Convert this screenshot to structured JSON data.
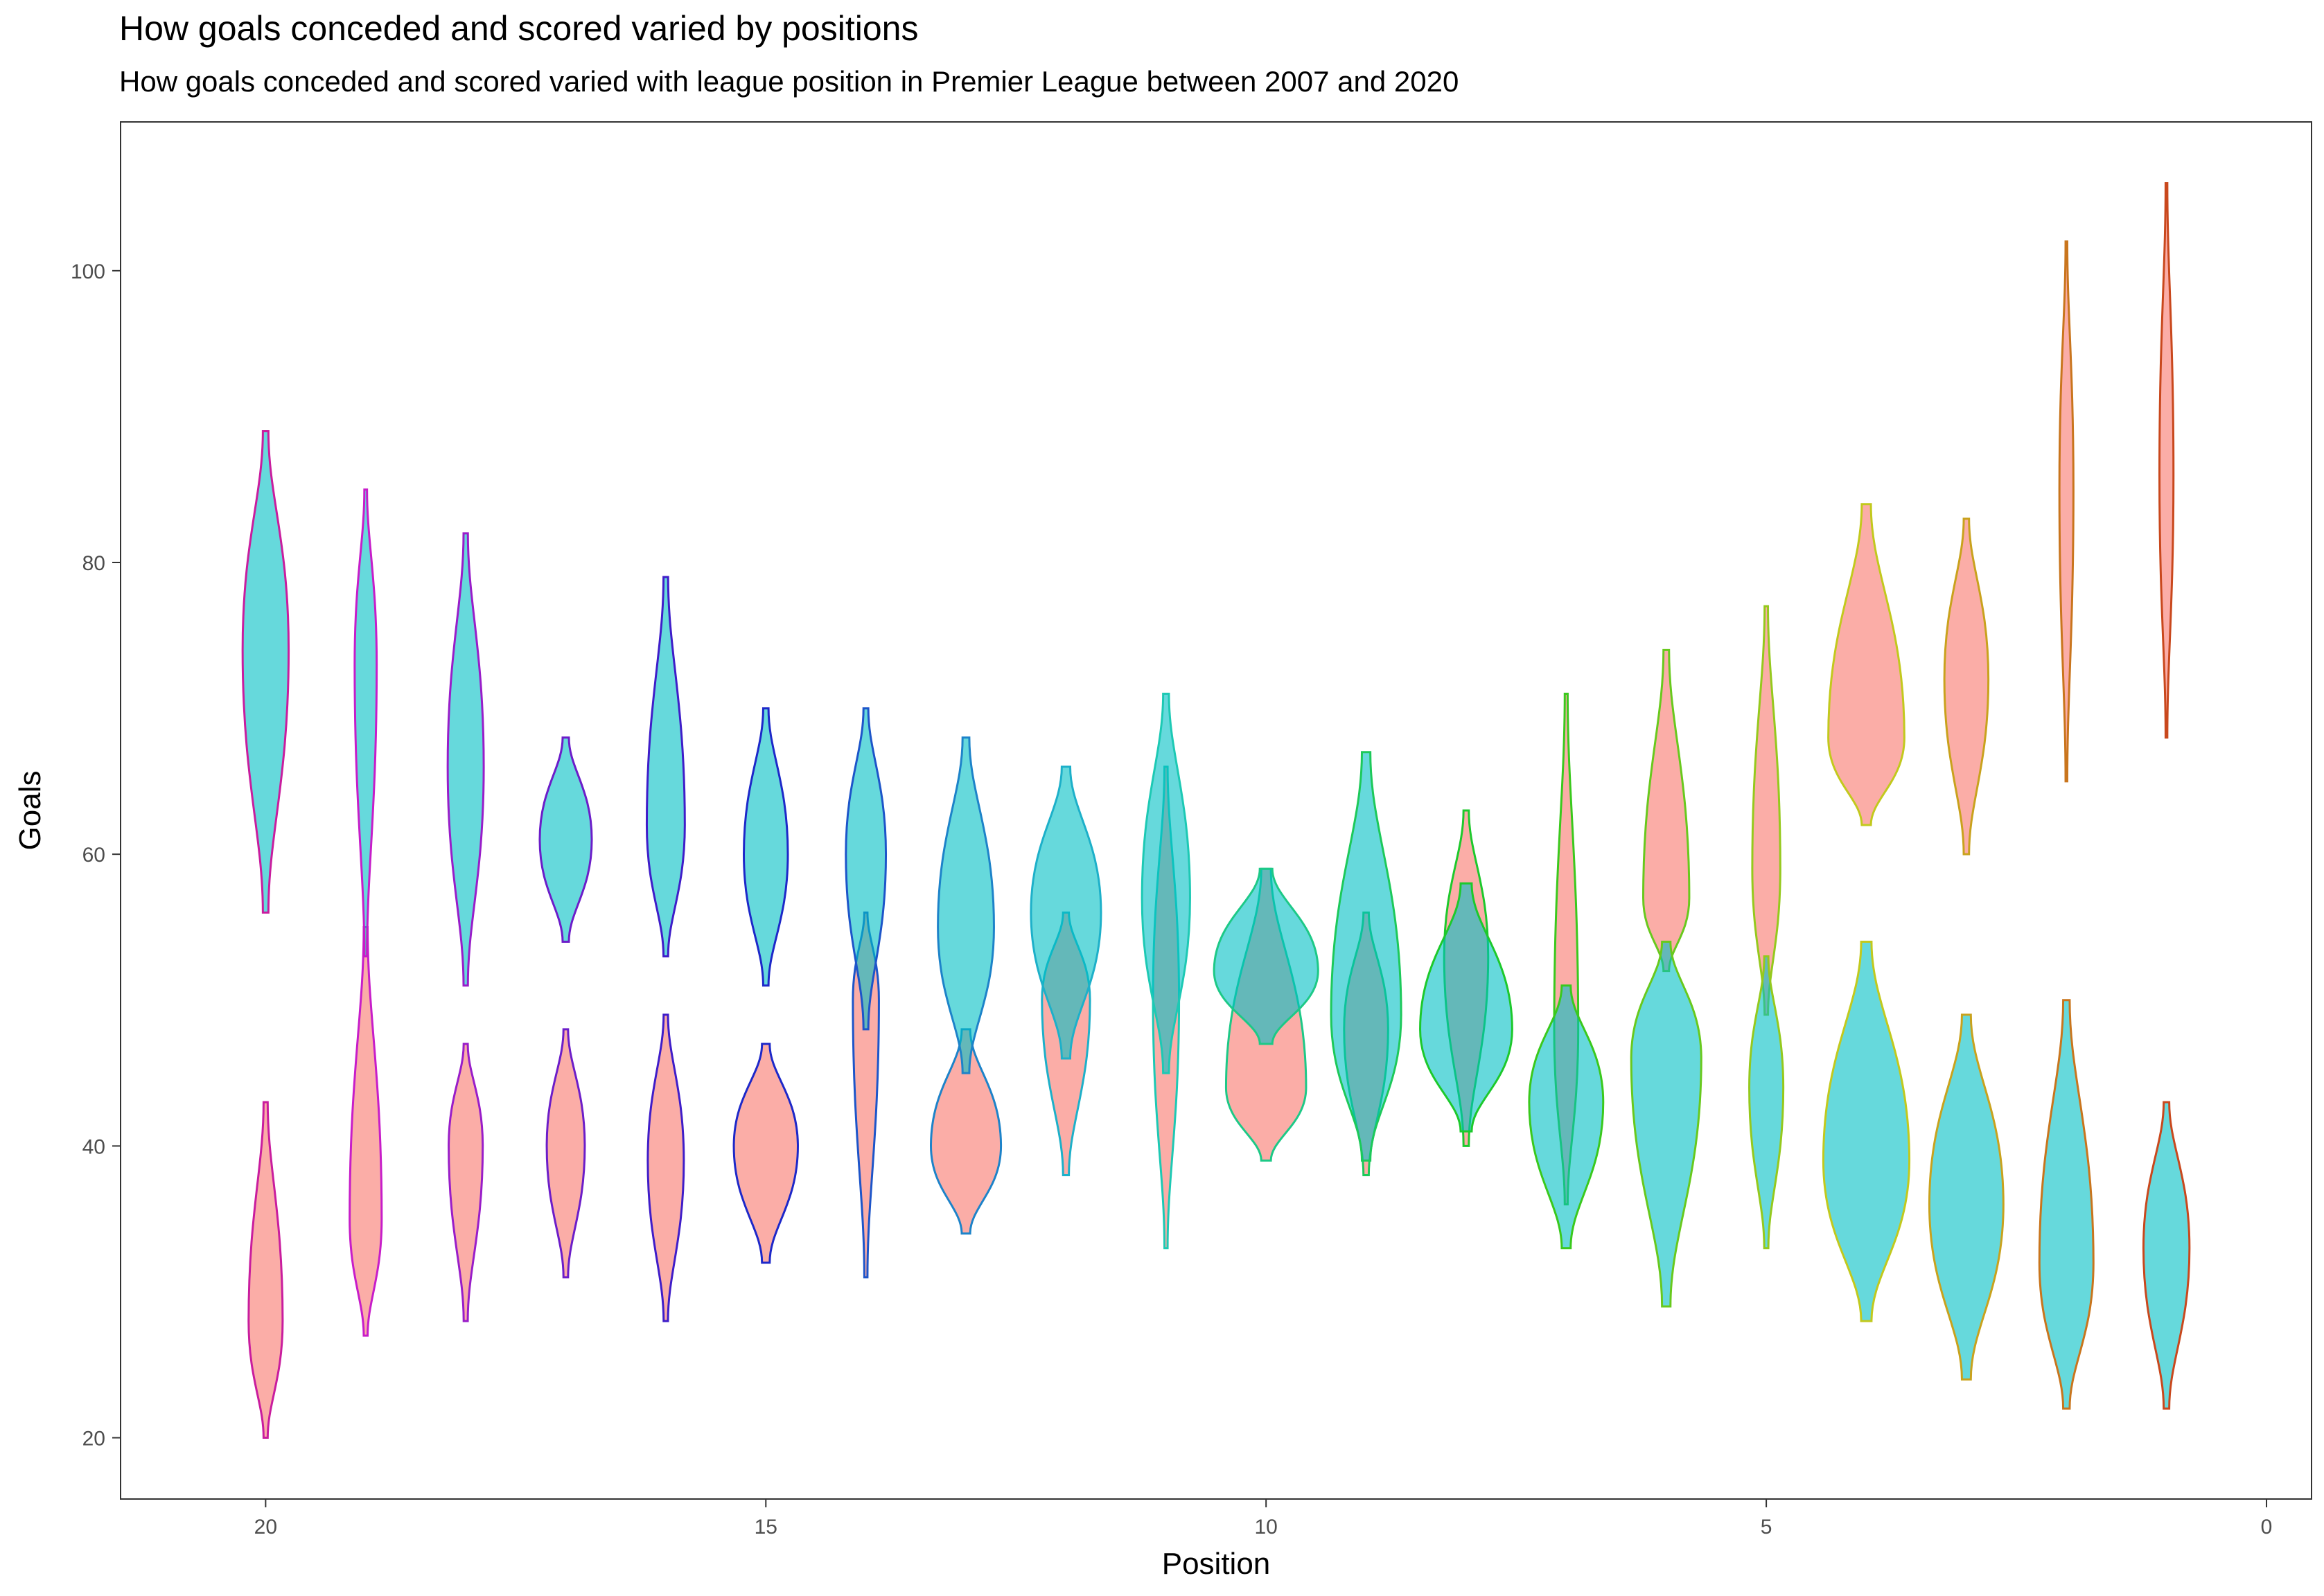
{
  "chart_data": {
    "type": "violin",
    "title": "How goals conceded and scored varied by positions",
    "subtitle": "How goals conceded and scored varied with league position in Premier League between 2007 and 2020",
    "xlabel": "Position",
    "ylabel": "Goals",
    "xlim": [
      -0.45,
      21.45
    ],
    "x_reversed": true,
    "ylim": [
      15.8,
      110.2
    ],
    "x_ticks": [
      20,
      15,
      10,
      5,
      0
    ],
    "y_ticks": [
      20,
      40,
      60,
      80,
      100
    ],
    "grid": false,
    "legend": "none",
    "fills": {
      "scored": "#F8766D",
      "conceded": "#00BFC4"
    },
    "fill_opacity": 0.6,
    "series": [
      {
        "key": "scored",
        "violins": [
          {
            "position": 20,
            "min": 20,
            "max": 43,
            "peak": 28,
            "halfwidth": 0.17
          },
          {
            "position": 19,
            "min": 27,
            "max": 55,
            "peak": 35,
            "halfwidth": 0.16
          },
          {
            "position": 18,
            "min": 28,
            "max": 47,
            "peak": 40,
            "halfwidth": 0.17
          },
          {
            "position": 17,
            "min": 31,
            "max": 48,
            "peak": 40,
            "halfwidth": 0.19
          },
          {
            "position": 16,
            "min": 28,
            "max": 49,
            "peak": 39,
            "halfwidth": 0.18
          },
          {
            "position": 15,
            "min": 32,
            "max": 47,
            "peak": 40,
            "halfwidth": 0.32
          },
          {
            "position": 14,
            "min": 31,
            "max": 56,
            "peak": 50,
            "halfwidth": 0.13
          },
          {
            "position": 13,
            "min": 34,
            "max": 48,
            "peak": 40,
            "halfwidth": 0.35
          },
          {
            "position": 12,
            "min": 38,
            "max": 56,
            "peak": 50,
            "halfwidth": 0.24
          },
          {
            "position": 11,
            "min": 33,
            "max": 66,
            "peak": 50,
            "halfwidth": 0.13
          },
          {
            "position": 10,
            "min": 39,
            "max": 59,
            "peak": 44,
            "halfwidth": 0.4
          },
          {
            "position": 9,
            "min": 38,
            "max": 56,
            "peak": 48,
            "halfwidth": 0.22
          },
          {
            "position": 8,
            "min": 40,
            "max": 63,
            "peak": 53,
            "halfwidth": 0.22
          },
          {
            "position": 7,
            "min": 36,
            "max": 71,
            "peak": 48,
            "halfwidth": 0.12
          },
          {
            "position": 6,
            "min": 52,
            "max": 74,
            "peak": 57,
            "halfwidth": 0.23
          },
          {
            "position": 5,
            "min": 49,
            "max": 77,
            "peak": 59,
            "halfwidth": 0.14
          },
          {
            "position": 4,
            "min": 62,
            "max": 84,
            "peak": 68,
            "halfwidth": 0.38
          },
          {
            "position": 3,
            "min": 60,
            "max": 83,
            "peak": 72,
            "halfwidth": 0.22
          },
          {
            "position": 2,
            "min": 65,
            "max": 102,
            "peak": 85,
            "halfwidth": 0.07
          },
          {
            "position": 1,
            "min": 68,
            "max": 106,
            "peak": 86,
            "halfwidth": 0.07
          }
        ]
      },
      {
        "key": "conceded",
        "violins": [
          {
            "position": 20,
            "min": 56,
            "max": 89,
            "peak": 74,
            "halfwidth": 0.23
          },
          {
            "position": 19,
            "min": 53,
            "max": 85,
            "peak": 73,
            "halfwidth": 0.11
          },
          {
            "position": 18,
            "min": 51,
            "max": 82,
            "peak": 66,
            "halfwidth": 0.18
          },
          {
            "position": 17,
            "min": 54,
            "max": 68,
            "peak": 61,
            "halfwidth": 0.26
          },
          {
            "position": 16,
            "min": 53,
            "max": 79,
            "peak": 62,
            "halfwidth": 0.19
          },
          {
            "position": 15,
            "min": 51,
            "max": 70,
            "peak": 60,
            "halfwidth": 0.22
          },
          {
            "position": 14,
            "min": 48,
            "max": 70,
            "peak": 60,
            "halfwidth": 0.2
          },
          {
            "position": 13,
            "min": 45,
            "max": 68,
            "peak": 55,
            "halfwidth": 0.28
          },
          {
            "position": 12,
            "min": 46,
            "max": 66,
            "peak": 56,
            "halfwidth": 0.35
          },
          {
            "position": 11,
            "min": 45,
            "max": 71,
            "peak": 57,
            "halfwidth": 0.24
          },
          {
            "position": 10,
            "min": 47,
            "max": 59,
            "peak": 52,
            "halfwidth": 0.52
          },
          {
            "position": 9,
            "min": 39,
            "max": 67,
            "peak": 49,
            "halfwidth": 0.35
          },
          {
            "position": 8,
            "min": 41,
            "max": 58,
            "peak": 48,
            "halfwidth": 0.46
          },
          {
            "position": 7,
            "min": 33,
            "max": 51,
            "peak": 43,
            "halfwidth": 0.37
          },
          {
            "position": 6,
            "min": 29,
            "max": 54,
            "peak": 46,
            "halfwidth": 0.35
          },
          {
            "position": 5,
            "min": 33,
            "max": 53,
            "peak": 44,
            "halfwidth": 0.17
          },
          {
            "position": 4,
            "min": 28,
            "max": 54,
            "peak": 39,
            "halfwidth": 0.43
          },
          {
            "position": 3,
            "min": 24,
            "max": 49,
            "peak": 36,
            "halfwidth": 0.37
          },
          {
            "position": 2,
            "min": 22,
            "max": 50,
            "peak": 32,
            "halfwidth": 0.27
          },
          {
            "position": 1,
            "min": 22,
            "max": 43,
            "peak": 33,
            "halfwidth": 0.23
          }
        ]
      }
    ]
  }
}
